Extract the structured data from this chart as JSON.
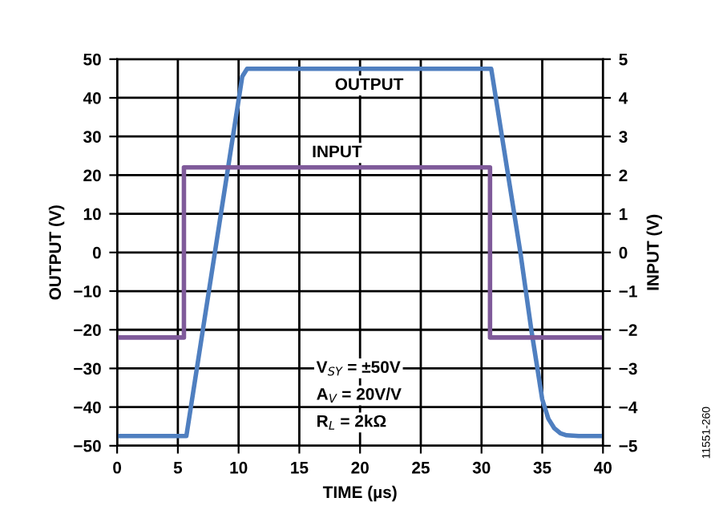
{
  "chart_data": {
    "type": "line",
    "xlabel": "TIME (µs)",
    "ylabel": "OUTPUT (V)",
    "y2label": "INPUT (V)",
    "xlim": [
      0,
      40
    ],
    "xticks": [
      0,
      5,
      10,
      15,
      20,
      25,
      30,
      35,
      40
    ],
    "ylim": [
      -50,
      50
    ],
    "yticks": [
      {
        "value": -50,
        "label": "−50"
      },
      {
        "value": -40,
        "label": "−40"
      },
      {
        "value": -30,
        "label": "−30"
      },
      {
        "value": -20,
        "label": "−20"
      },
      {
        "value": -10,
        "label": "−10"
      },
      0,
      10,
      20,
      30,
      40,
      50
    ],
    "y2lim": [
      -5,
      5
    ],
    "y2ticks": [
      {
        "value": -5,
        "label": "−5"
      },
      {
        "value": -4,
        "label": "−4"
      },
      {
        "value": -3,
        "label": "−3"
      },
      {
        "value": -2,
        "label": "−2"
      },
      {
        "value": -1,
        "label": "−1"
      },
      0,
      1,
      2,
      3,
      4,
      5
    ],
    "grid": true,
    "legend": false,
    "marker": "none",
    "line_style": "solid",
    "series": [
      {
        "name": "OUTPUT",
        "color": "#4f7fc0",
        "x": [
          0,
          5.7,
          10.3,
          10.7,
          30.8,
          33.2,
          34.1,
          35.0,
          35.5,
          36.0,
          36.5,
          37.0,
          38.0,
          40
        ],
        "values": [
          -47.5,
          -47.5,
          45.5,
          47.5,
          47.5,
          0,
          -20,
          -38,
          -43,
          -45.5,
          -46.8,
          -47.3,
          -47.5,
          -47.5
        ]
      },
      {
        "name": "INPUT",
        "color": "#7f5a9a",
        "axis": "y2",
        "x": [
          0,
          5.5,
          5.5,
          30.7,
          30.7,
          40
        ],
        "values": [
          -2.2,
          -2.2,
          2.2,
          2.2,
          -2.2,
          -2.2
        ]
      }
    ],
    "annotations": [
      "V$_{SY}$ = ±50V",
      "A$_{V}$ = 20V/V",
      "R$_{L}$ = 2kΩ",
      "11551-260"
    ]
  }
}
